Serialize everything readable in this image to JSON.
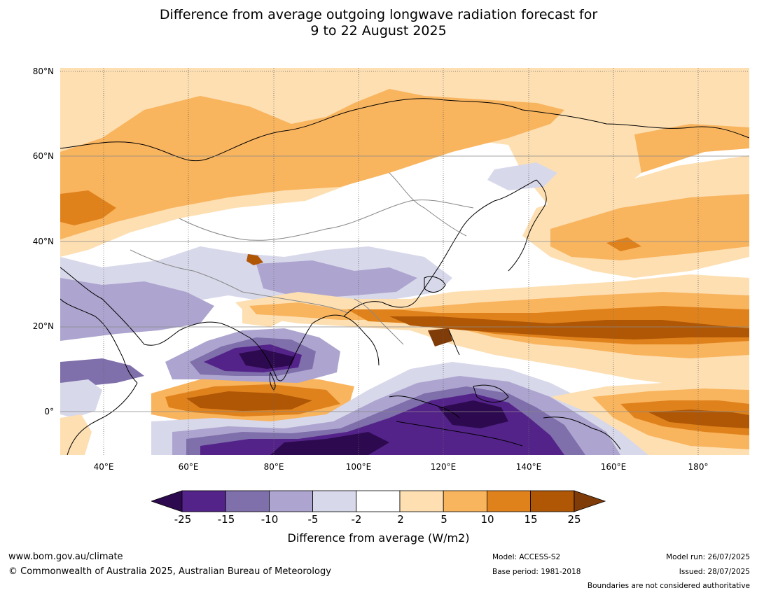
{
  "title": {
    "line1": "Difference from average outgoing longwave radiation forecast for",
    "line2": "9 to 22 August 2025"
  },
  "map": {
    "lat_labels": [
      "80°N",
      "60°N",
      "40°N",
      "20°N",
      "0°"
    ],
    "lon_labels": [
      "40°E",
      "60°E",
      "80°E",
      "100°E",
      "120°E",
      "140°E",
      "160°E",
      "180°"
    ]
  },
  "colorbar": {
    "title": "Difference from average (W/m2)",
    "ticks": [
      "-25",
      "-15",
      "-10",
      "-5",
      "-2",
      "2",
      "5",
      "10",
      "15",
      "25"
    ],
    "colors": [
      "#2d0a4f",
      "#54238a",
      "#7f6fab",
      "#ada5cf",
      "#d8d8eb",
      "#ffffff",
      "#fddfb2",
      "#f9b45e",
      "#e0821c",
      "#b05706",
      "#7f3b08"
    ]
  },
  "footer": {
    "website": "www.bom.gov.au/climate",
    "copyright": "© Commonwealth of Australia 2025, Australian Bureau of Meteorology",
    "model": "Model: ACCESS-S2",
    "base_period": "Base period: 1981-2018",
    "model_run": "Model run: 26/07/2025",
    "issued": "Issued: 28/07/2025",
    "disclaimer": "Boundaries are not considered authoritative"
  }
}
